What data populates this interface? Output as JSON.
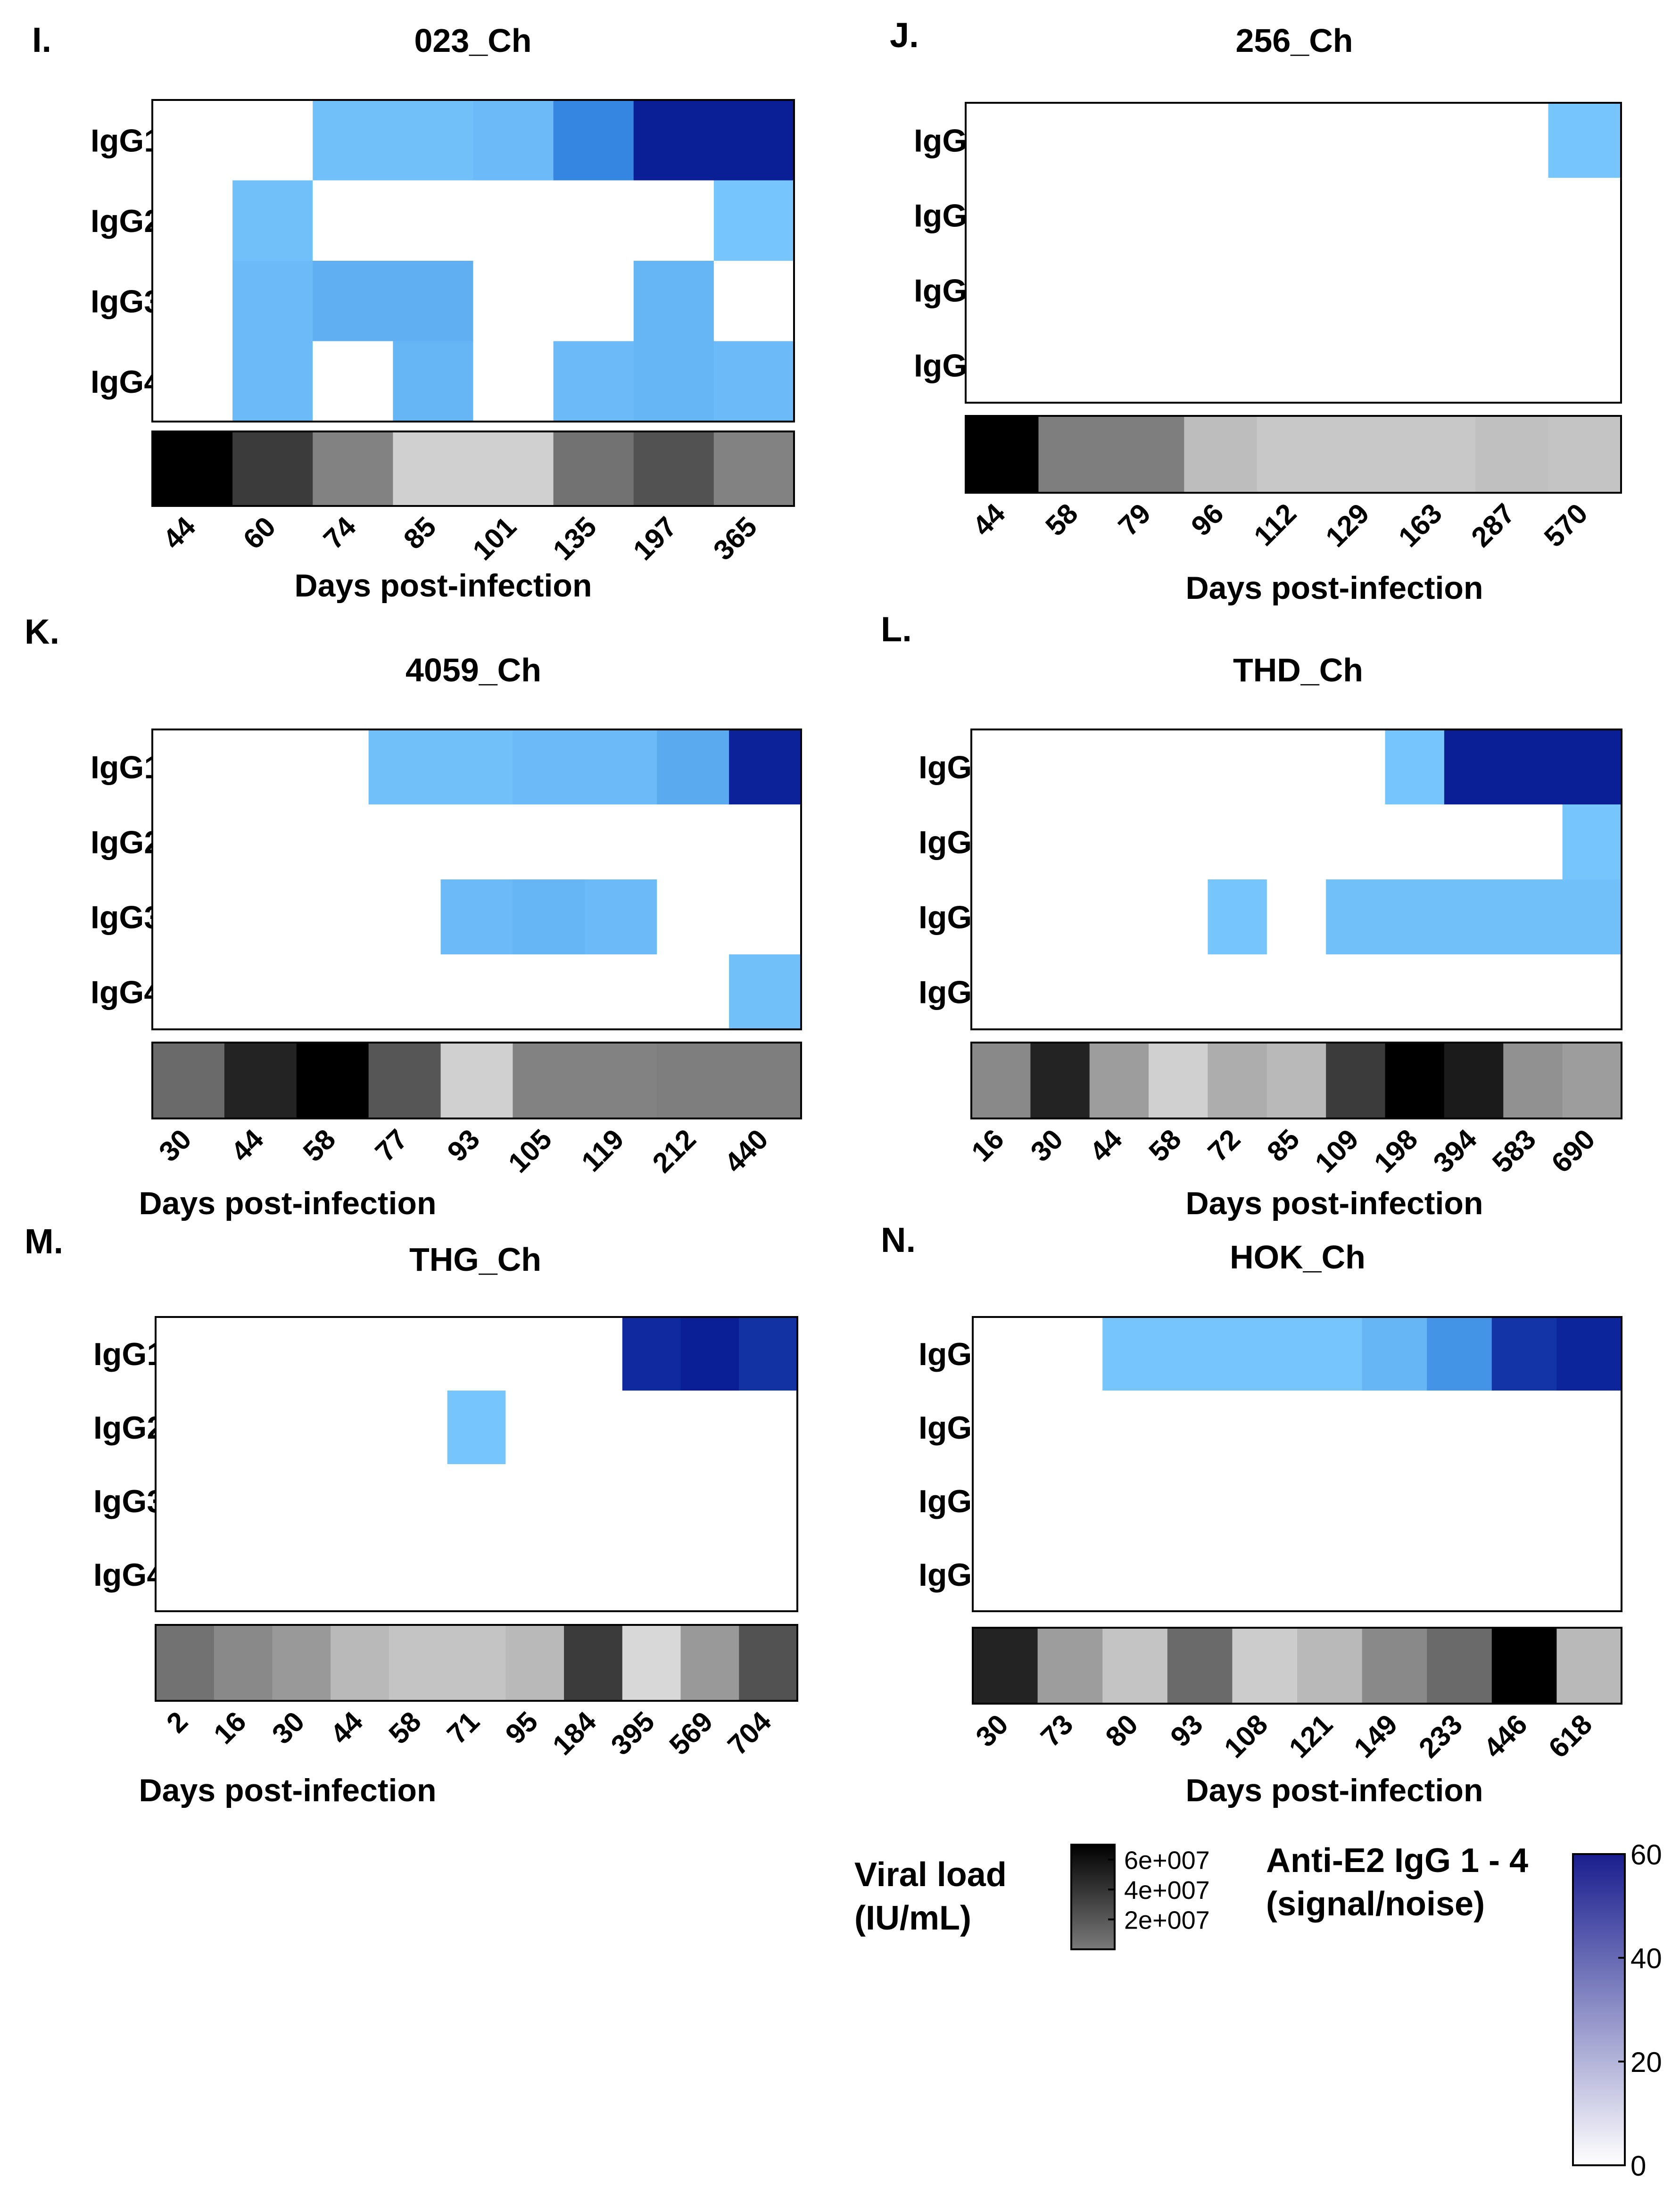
{
  "figure": {
    "x_axis_label": "Days post-infection",
    "row_labels": [
      "IgG1",
      "IgG2",
      "IgG3",
      "IgG4"
    ]
  },
  "chart_data": [
    {
      "panel": "I.",
      "title": "023_Ch",
      "type": "heatmap",
      "days": [
        "44",
        "60",
        "74",
        "85",
        "101",
        "135",
        "197",
        "365"
      ],
      "viral_load": [
        65000000.0,
        50000000.0,
        32000000.0,
        12000000.0,
        12000000.0,
        36000000.0,
        44000000.0,
        32000000.0
      ],
      "series": [
        {
          "name": "IgG1",
          "values": [
            0,
            0,
            12,
            12,
            13,
            30,
            60,
            58
          ]
        },
        {
          "name": "IgG2",
          "values": [
            0,
            12,
            0,
            0,
            0,
            0,
            0,
            11
          ]
        },
        {
          "name": "IgG3",
          "values": [
            0,
            13,
            15,
            15,
            0,
            0,
            14,
            0
          ]
        },
        {
          "name": "IgG4",
          "values": [
            0,
            13,
            0,
            14,
            0,
            13,
            14,
            13
          ]
        }
      ]
    },
    {
      "panel": "J.",
      "title": "256_Ch",
      "type": "heatmap",
      "days": [
        "44",
        "58",
        "79",
        "96",
        "112",
        "129",
        "163",
        "287",
        "570"
      ],
      "viral_load": [
        65000000.0,
        33000000.0,
        33000000.0,
        17000000.0,
        14000000.0,
        14000000.0,
        14000000.0,
        16000000.0,
        15000000.0
      ],
      "series": [
        {
          "name": "IgG1",
          "values": [
            0,
            0,
            0,
            0,
            0,
            0,
            0,
            0,
            11
          ]
        },
        {
          "name": "IgG2",
          "values": [
            0,
            0,
            0,
            0,
            0,
            0,
            0,
            0,
            0
          ]
        },
        {
          "name": "IgG3",
          "values": [
            0,
            0,
            0,
            0,
            0,
            0,
            0,
            0,
            0
          ]
        },
        {
          "name": "IgG4",
          "values": [
            0,
            0,
            0,
            0,
            0,
            0,
            0,
            0,
            0
          ]
        }
      ]
    },
    {
      "panel": "K.",
      "title": "4059_Ch",
      "type": "heatmap",
      "days": [
        "30",
        "44",
        "58",
        "77",
        "93",
        "105",
        "119",
        "212",
        "440"
      ],
      "viral_load": [
        38000000.0,
        56000000.0,
        65000000.0,
        43000000.0,
        12000000.0,
        32000000.0,
        32000000.0,
        33000000.0,
        33000000.0
      ],
      "series": [
        {
          "name": "IgG1",
          "values": [
            0,
            0,
            0,
            12,
            12,
            13,
            13,
            16,
            57
          ]
        },
        {
          "name": "IgG2",
          "values": [
            0,
            0,
            0,
            0,
            0,
            0,
            0,
            0,
            0
          ]
        },
        {
          "name": "IgG3",
          "values": [
            0,
            0,
            0,
            0,
            13,
            14,
            13,
            0,
            0
          ]
        },
        {
          "name": "IgG4",
          "values": [
            0,
            0,
            0,
            0,
            0,
            0,
            0,
            0,
            12
          ]
        }
      ]
    },
    {
      "panel": "L.",
      "title": "THD_Ch",
      "type": "heatmap",
      "days": [
        "16",
        "30",
        "44",
        "58",
        "72",
        "85",
        "109",
        "198",
        "394",
        "583",
        "690"
      ],
      "viral_load": [
        30000000.0,
        56000000.0,
        25000000.0,
        12000000.0,
        21000000.0,
        18000000.0,
        50000000.0,
        65000000.0,
        58000000.0,
        28000000.0,
        25000000.0
      ],
      "series": [
        {
          "name": "IgG1",
          "values": [
            0,
            0,
            0,
            0,
            0,
            0,
            0,
            11,
            60,
            59,
            58
          ]
        },
        {
          "name": "IgG2",
          "values": [
            0,
            0,
            0,
            0,
            0,
            0,
            0,
            0,
            0,
            0,
            11
          ]
        },
        {
          "name": "IgG3",
          "values": [
            0,
            0,
            0,
            0,
            11,
            0,
            12,
            12,
            12,
            12,
            12
          ]
        },
        {
          "name": "IgG4",
          "values": [
            0,
            0,
            0,
            0,
            0,
            0,
            0,
            0,
            0,
            0,
            0
          ]
        }
      ]
    },
    {
      "panel": "M.",
      "title": "THG_Ch",
      "type": "heatmap",
      "days": [
        "2",
        "16",
        "30",
        "44",
        "58",
        "71",
        "95",
        "184",
        "395",
        "569",
        "704"
      ],
      "viral_load": [
        36000000.0,
        30000000.0,
        26000000.0,
        18000000.0,
        15000000.0,
        15000000.0,
        18000000.0,
        50000000.0,
        10000000.0,
        26000000.0,
        44000000.0
      ],
      "series": [
        {
          "name": "IgG1",
          "values": [
            0,
            0,
            0,
            0,
            0,
            0,
            0,
            0,
            55,
            58,
            53
          ]
        },
        {
          "name": "IgG2",
          "values": [
            0,
            0,
            0,
            0,
            0,
            11,
            0,
            0,
            0,
            0,
            0
          ]
        },
        {
          "name": "IgG3",
          "values": [
            0,
            0,
            0,
            0,
            0,
            0,
            0,
            0,
            0,
            0,
            0
          ]
        },
        {
          "name": "IgG4",
          "values": [
            0,
            0,
            0,
            0,
            0,
            0,
            0,
            0,
            0,
            0,
            0
          ]
        }
      ]
    },
    {
      "panel": "N.",
      "title": "HOK_Ch",
      "type": "heatmap",
      "days": [
        "30",
        "73",
        "80",
        "93",
        "108",
        "121",
        "149",
        "233",
        "446",
        "618"
      ],
      "viral_load": [
        56000000.0,
        25000000.0,
        15000000.0,
        38000000.0,
        13000000.0,
        18000000.0,
        30000000.0,
        38000000.0,
        65000000.0,
        18000000.0
      ],
      "series": [
        {
          "name": "IgG1",
          "values": [
            0,
            0,
            11,
            11,
            11,
            11,
            14,
            20,
            52,
            56
          ]
        },
        {
          "name": "IgG2",
          "values": [
            0,
            0,
            0,
            0,
            0,
            0,
            0,
            0,
            0,
            0
          ]
        },
        {
          "name": "IgG3",
          "values": [
            0,
            0,
            0,
            0,
            0,
            0,
            0,
            0,
            0,
            0
          ]
        },
        {
          "name": "IgG4",
          "values": [
            0,
            0,
            0,
            0,
            0,
            0,
            0,
            0,
            0,
            0
          ]
        }
      ]
    }
  ],
  "legends": {
    "viral_load": {
      "title_line1": "Viral load",
      "title_line2": "(IU/mL)",
      "ticks": [
        "6e+007",
        "4e+007",
        "2e+007"
      ],
      "tick_values": [
        60000000.0,
        40000000.0,
        20000000.0
      ],
      "range": [
        0,
        70000000.0
      ]
    },
    "antibody": {
      "title_line1": "Anti-E2 IgG 1 - 4",
      "title_line2": "(signal/noise)",
      "ticks": [
        "60",
        "40",
        "20",
        "0"
      ],
      "tick_values": [
        60,
        40,
        20,
        0
      ],
      "range": [
        0,
        60
      ]
    }
  },
  "colors": {
    "light_blue": "#7DCBFF",
    "mid_blue": "#3586E0",
    "dark_blue": "#0A1E96",
    "legend_blue": "#1A1E8E",
    "viral_dark": "#000000",
    "viral_light": "#D8D8D8",
    "border": "#000000",
    "text": "#000000"
  }
}
